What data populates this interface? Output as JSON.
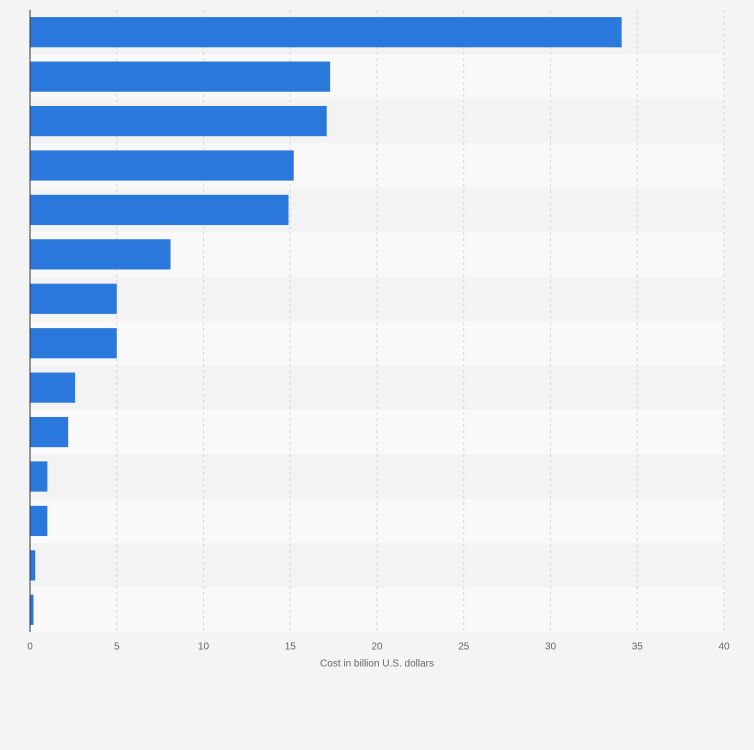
{
  "chart_data": {
    "type": "barh",
    "categories": [
      null,
      null,
      null,
      null,
      null,
      null,
      null,
      null,
      null,
      null,
      null,
      null,
      null,
      null
    ],
    "values": [
      34.1,
      17.3,
      17.1,
      15.2,
      14.9,
      8.1,
      5.0,
      5.0,
      2.6,
      2.2,
      1.0,
      1.0,
      0.3,
      0.2
    ],
    "color": "#2a78dc",
    "xlabel": "Cost in billion U.S. dollars",
    "xlim": [
      0,
      40
    ],
    "xticks": [
      0,
      5,
      10,
      15,
      20,
      25,
      30,
      35,
      40
    ],
    "grid": true
  }
}
